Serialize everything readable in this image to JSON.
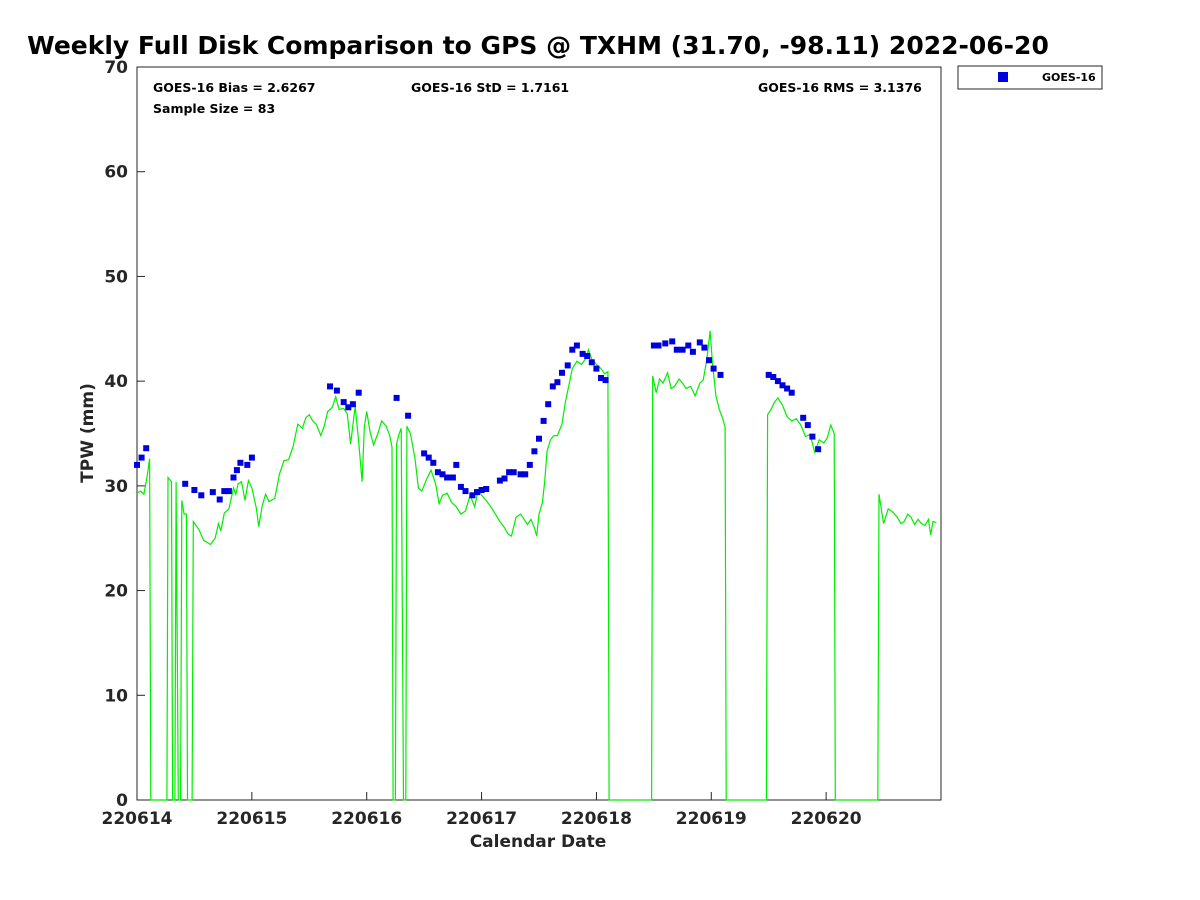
{
  "chart_data": {
    "type": "scatter",
    "title": "Weekly Full Disk Comparison to GPS @ TXHM (31.70, -98.11) 2022-06-20",
    "xlabel": "Calendar Date",
    "ylabel": "TPW (mm)",
    "xlim": [
      0,
      7
    ],
    "ylim": [
      0,
      70
    ],
    "x_ticks": [
      {
        "value": 0,
        "label": "220614"
      },
      {
        "value": 1,
        "label": "220615"
      },
      {
        "value": 2,
        "label": "220616"
      },
      {
        "value": 3,
        "label": "220617"
      },
      {
        "value": 4,
        "label": "220618"
      },
      {
        "value": 5,
        "label": "220619"
      },
      {
        "value": 6,
        "label": "220620"
      }
    ],
    "y_ticks": [
      {
        "value": 0,
        "label": "0"
      },
      {
        "value": 10,
        "label": "10"
      },
      {
        "value": 20,
        "label": "20"
      },
      {
        "value": 30,
        "label": "30"
      },
      {
        "value": 40,
        "label": "40"
      },
      {
        "value": 50,
        "label": "50"
      },
      {
        "value": 60,
        "label": "60"
      },
      {
        "value": 70,
        "label": "70"
      }
    ],
    "stats": {
      "bias": "GOES-16 Bias = 2.6267",
      "std": "GOES-16 StD = 1.7161",
      "rms": "GOES-16 RMS = 3.1376",
      "sample": "Sample Size = 83"
    },
    "legend": {
      "placement": "top-right outside",
      "entries": [
        "GOES-16"
      ]
    },
    "colors": {
      "goes": "#0000dd",
      "gps": "#00ee00",
      "axis": "#262626"
    },
    "series": [
      {
        "name": "GOES-16",
        "marker": "square",
        "points": [
          [
            0.0,
            32.0
          ],
          [
            0.04,
            32.7
          ],
          [
            0.08,
            33.6
          ],
          [
            0.42,
            30.2
          ],
          [
            0.5,
            29.6
          ],
          [
            0.56,
            29.1
          ],
          [
            0.66,
            29.4
          ],
          [
            0.72,
            28.7
          ],
          [
            0.76,
            29.5
          ],
          [
            0.8,
            29.5
          ],
          [
            0.84,
            30.8
          ],
          [
            0.87,
            31.5
          ],
          [
            0.9,
            32.2
          ],
          [
            0.96,
            32.0
          ],
          [
            1.0,
            32.7
          ],
          [
            1.68,
            39.5
          ],
          [
            1.74,
            39.1
          ],
          [
            1.8,
            38.0
          ],
          [
            1.84,
            37.5
          ],
          [
            1.88,
            37.8
          ],
          [
            1.93,
            38.9
          ],
          [
            2.26,
            38.4
          ],
          [
            2.36,
            36.7
          ],
          [
            2.5,
            33.1
          ],
          [
            2.54,
            32.7
          ],
          [
            2.58,
            32.2
          ],
          [
            2.62,
            31.3
          ],
          [
            2.66,
            31.1
          ],
          [
            2.7,
            30.8
          ],
          [
            2.75,
            30.8
          ],
          [
            2.78,
            32.0
          ],
          [
            2.82,
            29.9
          ],
          [
            2.86,
            29.5
          ],
          [
            2.92,
            29.1
          ],
          [
            2.96,
            29.4
          ],
          [
            3.0,
            29.6
          ],
          [
            3.04,
            29.7
          ],
          [
            3.16,
            30.5
          ],
          [
            3.2,
            30.7
          ],
          [
            3.24,
            31.3
          ],
          [
            3.28,
            31.3
          ],
          [
            3.34,
            31.1
          ],
          [
            3.38,
            31.1
          ],
          [
            3.42,
            32.0
          ],
          [
            3.46,
            33.3
          ],
          [
            3.5,
            34.5
          ],
          [
            3.54,
            36.2
          ],
          [
            3.58,
            37.8
          ],
          [
            3.62,
            39.5
          ],
          [
            3.66,
            39.9
          ],
          [
            3.7,
            40.8
          ],
          [
            3.75,
            41.5
          ],
          [
            3.79,
            43.0
          ],
          [
            3.83,
            43.4
          ],
          [
            3.88,
            42.6
          ],
          [
            3.92,
            42.4
          ],
          [
            3.96,
            41.8
          ],
          [
            4.0,
            41.2
          ],
          [
            4.04,
            40.3
          ],
          [
            4.08,
            40.1
          ],
          [
            4.5,
            43.4
          ],
          [
            4.54,
            43.4
          ],
          [
            4.6,
            43.6
          ],
          [
            4.66,
            43.8
          ],
          [
            4.7,
            43.0
          ],
          [
            4.75,
            43.0
          ],
          [
            4.8,
            43.4
          ],
          [
            4.84,
            42.8
          ],
          [
            4.9,
            43.7
          ],
          [
            4.94,
            43.2
          ],
          [
            4.98,
            42.0
          ],
          [
            5.02,
            41.2
          ],
          [
            5.08,
            40.6
          ],
          [
            5.5,
            40.6
          ],
          [
            5.54,
            40.4
          ],
          [
            5.58,
            40.0
          ],
          [
            5.62,
            39.6
          ],
          [
            5.66,
            39.3
          ],
          [
            5.7,
            38.9
          ],
          [
            5.8,
            36.5
          ],
          [
            5.84,
            35.8
          ],
          [
            5.88,
            34.7
          ],
          [
            5.93,
            33.5
          ]
        ]
      },
      {
        "name": "",
        "marker": "line",
        "points": [
          [
            0.0,
            29.3
          ],
          [
            0.03,
            29.5
          ],
          [
            0.06,
            29.2
          ],
          [
            0.09,
            31.0
          ],
          [
            0.11,
            32.6
          ],
          [
            0.12,
            0
          ],
          [
            0.26,
            0
          ],
          [
            0.27,
            30.8
          ],
          [
            0.3,
            30.4
          ],
          [
            0.31,
            0
          ],
          [
            0.33,
            0
          ],
          [
            0.34,
            30.4
          ],
          [
            0.36,
            0
          ],
          [
            0.38,
            0
          ],
          [
            0.39,
            28.6
          ],
          [
            0.41,
            27.3
          ],
          [
            0.43,
            27.3
          ],
          [
            0.44,
            0
          ],
          [
            0.48,
            0
          ],
          [
            0.49,
            26.6
          ],
          [
            0.54,
            25.8
          ],
          [
            0.58,
            24.8
          ],
          [
            0.64,
            24.4
          ],
          [
            0.68,
            25.0
          ],
          [
            0.71,
            26.4
          ],
          [
            0.73,
            25.7
          ],
          [
            0.76,
            27.4
          ],
          [
            0.8,
            27.8
          ],
          [
            0.84,
            29.8
          ],
          [
            0.86,
            29.2
          ],
          [
            0.88,
            30.2
          ],
          [
            0.91,
            30.4
          ],
          [
            0.94,
            28.6
          ],
          [
            0.97,
            30.5
          ],
          [
            1.0,
            29.8
          ],
          [
            1.04,
            27.8
          ],
          [
            1.06,
            26.1
          ],
          [
            1.09,
            28.1
          ],
          [
            1.12,
            29.2
          ],
          [
            1.15,
            28.5
          ],
          [
            1.2,
            28.8
          ],
          [
            1.24,
            31.1
          ],
          [
            1.28,
            32.4
          ],
          [
            1.32,
            32.5
          ],
          [
            1.36,
            33.8
          ],
          [
            1.4,
            35.9
          ],
          [
            1.44,
            35.5
          ],
          [
            1.47,
            36.5
          ],
          [
            1.5,
            36.8
          ],
          [
            1.53,
            36.2
          ],
          [
            1.56,
            35.9
          ],
          [
            1.6,
            34.8
          ],
          [
            1.63,
            35.7
          ],
          [
            1.66,
            37.1
          ],
          [
            1.7,
            37.5
          ],
          [
            1.73,
            38.5
          ],
          [
            1.76,
            37.3
          ],
          [
            1.8,
            37.4
          ],
          [
            1.83,
            36.9
          ],
          [
            1.86,
            34.0
          ],
          [
            1.9,
            37.6
          ],
          [
            1.93,
            34.2
          ],
          [
            1.96,
            30.4
          ],
          [
            1.98,
            35.7
          ],
          [
            2.0,
            37.1
          ],
          [
            2.03,
            35.1
          ],
          [
            2.06,
            33.9
          ],
          [
            2.1,
            35.1
          ],
          [
            2.13,
            36.2
          ],
          [
            2.17,
            35.7
          ],
          [
            2.2,
            34.8
          ],
          [
            2.22,
            33.7
          ],
          [
            2.23,
            0
          ],
          [
            2.25,
            0
          ],
          [
            2.26,
            34.0
          ],
          [
            2.28,
            34.9
          ],
          [
            2.3,
            35.5
          ],
          [
            2.32,
            0
          ],
          [
            2.34,
            0
          ],
          [
            2.35,
            35.7
          ],
          [
            2.38,
            35.0
          ],
          [
            2.42,
            32.6
          ],
          [
            2.45,
            29.8
          ],
          [
            2.48,
            29.5
          ],
          [
            2.52,
            30.6
          ],
          [
            2.56,
            31.5
          ],
          [
            2.6,
            30.2
          ],
          [
            2.63,
            28.3
          ],
          [
            2.66,
            29.1
          ],
          [
            2.7,
            29.3
          ],
          [
            2.74,
            28.4
          ],
          [
            2.78,
            28.0
          ],
          [
            2.82,
            27.3
          ],
          [
            2.86,
            27.6
          ],
          [
            2.9,
            29.1
          ],
          [
            2.94,
            28.0
          ],
          [
            2.97,
            29.6
          ],
          [
            3.0,
            29.1
          ],
          [
            3.04,
            28.6
          ],
          [
            3.08,
            28.0
          ],
          [
            3.12,
            27.3
          ],
          [
            3.16,
            26.6
          ],
          [
            3.2,
            26.0
          ],
          [
            3.23,
            25.4
          ],
          [
            3.26,
            25.2
          ],
          [
            3.3,
            27.0
          ],
          [
            3.34,
            27.3
          ],
          [
            3.37,
            26.8
          ],
          [
            3.4,
            26.3
          ],
          [
            3.43,
            26.8
          ],
          [
            3.46,
            26.0
          ],
          [
            3.48,
            25.2
          ],
          [
            3.5,
            27.3
          ],
          [
            3.53,
            28.4
          ],
          [
            3.55,
            30.4
          ],
          [
            3.57,
            33.3
          ],
          [
            3.6,
            34.4
          ],
          [
            3.63,
            34.8
          ],
          [
            3.66,
            34.8
          ],
          [
            3.7,
            35.9
          ],
          [
            3.73,
            38.0
          ],
          [
            3.76,
            39.6
          ],
          [
            3.79,
            41.2
          ],
          [
            3.83,
            41.9
          ],
          [
            3.87,
            41.6
          ],
          [
            3.91,
            42.2
          ],
          [
            3.93,
            43.0
          ],
          [
            3.96,
            42.1
          ],
          [
            4.0,
            41.6
          ],
          [
            4.04,
            41.2
          ],
          [
            4.07,
            40.7
          ],
          [
            4.1,
            40.9
          ],
          [
            4.11,
            0
          ],
          [
            4.48,
            0
          ],
          [
            4.49,
            40.5
          ],
          [
            4.52,
            38.9
          ],
          [
            4.55,
            40.2
          ],
          [
            4.58,
            39.8
          ],
          [
            4.62,
            40.8
          ],
          [
            4.65,
            39.3
          ],
          [
            4.68,
            39.5
          ],
          [
            4.72,
            40.2
          ],
          [
            4.75,
            39.8
          ],
          [
            4.78,
            39.3
          ],
          [
            4.82,
            39.5
          ],
          [
            4.86,
            38.6
          ],
          [
            4.9,
            39.8
          ],
          [
            4.93,
            40.1
          ],
          [
            4.96,
            42.0
          ],
          [
            4.99,
            44.8
          ],
          [
            5.01,
            41.8
          ],
          [
            5.04,
            38.6
          ],
          [
            5.07,
            37.3
          ],
          [
            5.1,
            36.4
          ],
          [
            5.12,
            35.6
          ],
          [
            5.13,
            0
          ],
          [
            5.48,
            0
          ],
          [
            5.49,
            36.8
          ],
          [
            5.52,
            37.3
          ],
          [
            5.55,
            38.0
          ],
          [
            5.58,
            38.4
          ],
          [
            5.62,
            37.7
          ],
          [
            5.66,
            36.6
          ],
          [
            5.7,
            36.2
          ],
          [
            5.74,
            36.4
          ],
          [
            5.78,
            35.8
          ],
          [
            5.82,
            34.7
          ],
          [
            5.86,
            34.9
          ],
          [
            5.9,
            33.2
          ],
          [
            5.94,
            34.4
          ],
          [
            5.98,
            34.1
          ],
          [
            6.01,
            34.6
          ],
          [
            6.04,
            35.8
          ],
          [
            6.07,
            35.0
          ],
          [
            6.08,
            0
          ],
          [
            6.45,
            0
          ],
          [
            6.46,
            29.2
          ],
          [
            6.5,
            26.4
          ],
          [
            6.54,
            27.8
          ],
          [
            6.58,
            27.5
          ],
          [
            6.62,
            27.0
          ],
          [
            6.65,
            26.4
          ],
          [
            6.68,
            26.6
          ],
          [
            6.71,
            27.3
          ],
          [
            6.74,
            27.0
          ],
          [
            6.77,
            26.3
          ],
          [
            6.8,
            26.8
          ],
          [
            6.83,
            26.4
          ],
          [
            6.86,
            26.2
          ],
          [
            6.89,
            26.8
          ],
          [
            6.91,
            25.3
          ],
          [
            6.93,
            26.6
          ],
          [
            6.96,
            26.5
          ]
        ]
      }
    ]
  }
}
